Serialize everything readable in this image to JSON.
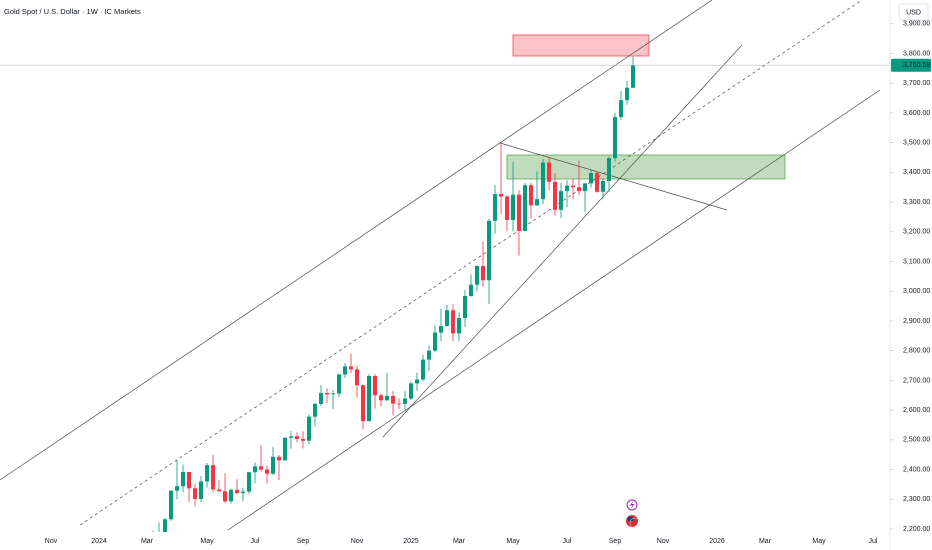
{
  "chart_data": {
    "type": "candlestick",
    "title": "Gold Spot / U.S. Dollar · 1W · IC Markets",
    "currency": "USD",
    "up_color": "#089981",
    "down_color": "#f23645",
    "ylim": [
      2190,
      3980
    ],
    "yticks": [
      {
        "value": 2200,
        "label": "2,200.00"
      },
      {
        "value": 2300,
        "label": "2,300.00"
      },
      {
        "value": 2400,
        "label": "2,400.00"
      },
      {
        "value": 2500,
        "label": "2,500.00"
      },
      {
        "value": 2600,
        "label": "2,600.00"
      },
      {
        "value": 2700,
        "label": "2,700.00"
      },
      {
        "value": 2800,
        "label": "2,800.00"
      },
      {
        "value": 2900,
        "label": "2,900.00"
      },
      {
        "value": 3000,
        "label": "3,000.00"
      },
      {
        "value": 3100,
        "label": "3,100.00"
      },
      {
        "value": 3200,
        "label": "3,200.00"
      },
      {
        "value": 3300,
        "label": "3,300.00"
      },
      {
        "value": 3400,
        "label": "3,400.00"
      },
      {
        "value": 3500,
        "label": "3,500.00"
      },
      {
        "value": 3600,
        "label": "3,600.00"
      },
      {
        "value": 3700,
        "label": "3,700.00"
      },
      {
        "value": 3800,
        "label": "3,800.00"
      },
      {
        "value": 3900,
        "label": "3,900.00"
      }
    ],
    "last_price": {
      "value": 3760.58,
      "label": "3,760.58"
    },
    "categories": [
      null,
      null,
      null,
      null,
      null,
      null,
      null,
      null,
      "Nov",
      null,
      null,
      null,
      null,
      null,
      null,
      null,
      "2024",
      null,
      null,
      null,
      null,
      null,
      null,
      null,
      "Mar",
      null,
      null,
      null,
      null,
      null,
      null,
      null,
      null,
      null,
      "May",
      null,
      null,
      null,
      null,
      null,
      null,
      null,
      "Jul",
      null,
      null,
      null,
      null,
      null,
      null,
      null,
      "Sep",
      null,
      null,
      null,
      null,
      null,
      null,
      null,
      null,
      "Nov",
      null,
      null,
      null,
      null,
      null,
      null,
      null,
      null,
      "2025",
      null,
      null,
      null,
      null,
      null,
      null,
      null,
      "Mar",
      null,
      null,
      null,
      null,
      null,
      null,
      null,
      null,
      "May",
      null,
      null,
      null,
      null,
      null,
      null,
      null,
      null,
      "Jul",
      null,
      null,
      null,
      null,
      null,
      null,
      null,
      "Sep",
      null,
      null,
      null,
      null,
      null,
      null,
      null,
      "Nov",
      null,
      null,
      null,
      null,
      null,
      null,
      null,
      null,
      "2026",
      null,
      null,
      null,
      null,
      null,
      null,
      null,
      "Mar",
      null,
      null,
      null,
      null,
      null,
      null,
      null,
      null,
      "May",
      null,
      null,
      null,
      null,
      null,
      null,
      null,
      null,
      "Jul",
      null,
      null
    ],
    "open": [
      null,
      null,
      null,
      null,
      null,
      null,
      null,
      null,
      null,
      null,
      null,
      null,
      null,
      null,
      null,
      null,
      null,
      null,
      null,
      null,
      null,
      null,
      null,
      null,
      null,
      2179,
      2155,
      2165,
      2233,
      2329,
      2344,
      2392,
      2337,
      2301,
      2360,
      2415,
      2333,
      2327,
      2293,
      2332,
      2321,
      2326,
      2391,
      2411,
      2400,
      2386,
      2443,
      2431,
      2507,
      2512,
      2503,
      2497,
      2578,
      2621,
      2658,
      2653,
      2656,
      2720,
      2747,
      2737,
      2684,
      2563,
      2715,
      2650,
      2633,
      2648,
      2622,
      2621,
      2639,
      2690,
      2703,
      2770,
      2800,
      2861,
      2883,
      2936,
      2858,
      2910,
      2984,
      3022,
      3085,
      3037,
      3237,
      3327,
      3319,
      3240,
      3325,
      3203,
      3357,
      3289,
      3310,
      3433,
      3368,
      3274,
      3337,
      3355,
      3350,
      3337,
      3363,
      3398,
      3335,
      3371,
      3448,
      3586,
      3643,
      3685,
      null,
      null,
      null,
      null,
      null,
      null,
      null,
      null,
      null,
      null,
      null,
      null,
      null,
      null,
      null,
      null,
      null,
      null,
      null,
      null,
      null,
      null,
      null,
      null,
      null,
      null,
      null,
      null,
      null,
      null,
      null,
      null,
      null,
      null,
      null,
      null,
      null,
      null,
      null,
      null,
      null,
      null
    ],
    "high": [
      null,
      null,
      null,
      null,
      null,
      null,
      null,
      null,
      null,
      null,
      null,
      null,
      null,
      null,
      null,
      null,
      null,
      null,
      null,
      null,
      null,
      null,
      null,
      null,
      null,
      2195,
      2223,
      2236,
      2330,
      2431,
      2417,
      2392,
      2352,
      2378,
      2422,
      2450,
      2364,
      2388,
      2336,
      2368,
      2339,
      2392,
      2424,
      2483,
      2413,
      2477,
      2449,
      2509,
      2531,
      2525,
      2529,
      2586,
      2625,
      2685,
      2673,
      2667,
      2722,
      2758,
      2790,
      2750,
      2686,
      2721,
      2721,
      2657,
      2726,
      2664,
      2639,
      2665,
      2697,
      2726,
      2786,
      2817,
      2886,
      2942,
      2954,
      2956,
      2930,
      3004,
      3057,
      3087,
      3167,
      3245,
      3357,
      3500,
      3323,
      3435,
      3340,
      3365,
      3365,
      3403,
      3446,
      3452,
      3398,
      3365,
      3374,
      3377,
      3439,
      3363,
      3409,
      3404,
      3378,
      3453,
      3599,
      3674,
      3707,
      3791,
      null,
      null,
      null,
      null,
      null,
      null,
      null,
      null,
      null,
      null,
      null,
      null,
      null,
      null,
      null,
      null,
      null,
      null,
      null,
      null,
      null,
      null,
      null,
      null,
      null,
      null,
      null,
      null,
      null,
      null,
      null,
      null,
      null,
      null,
      null,
      null,
      null,
      null,
      null,
      null,
      null,
      null
    ],
    "low": [
      null,
      null,
      null,
      null,
      null,
      null,
      null,
      null,
      null,
      null,
      null,
      null,
      null,
      null,
      null,
      null,
      null,
      null,
      null,
      null,
      null,
      null,
      null,
      null,
      null,
      2146,
      2146,
      2158,
      2228,
      2300,
      2324,
      2291,
      2277,
      2291,
      2340,
      2325,
      2326,
      2287,
      2286,
      2316,
      2293,
      2318,
      2353,
      2393,
      2353,
      2382,
      2364,
      2430,
      2470,
      2491,
      2471,
      2485,
      2546,
      2614,
      2624,
      2603,
      2645,
      2708,
      2725,
      2643,
      2536,
      2563,
      2605,
      2613,
      2632,
      2583,
      2603,
      2596,
      2634,
      2665,
      2699,
      2731,
      2795,
      2832,
      2881,
      2832,
      2832,
      2880,
      2982,
      3000,
      3015,
      2957,
      3194,
      3260,
      3202,
      3202,
      3120,
      3204,
      3245,
      3287,
      3293,
      3340,
      3255,
      3247,
      3283,
      3309,
      3324,
      3268,
      3348,
      3331,
      3311,
      3335,
      3436,
      3576,
      3628,
      3683,
      null,
      null,
      null,
      null,
      null,
      null,
      null,
      null,
      null,
      null,
      null,
      null,
      null,
      null,
      null,
      null,
      null,
      null,
      null,
      null,
      null,
      null,
      null,
      null,
      null,
      null,
      null,
      null,
      null,
      null,
      null,
      null,
      null,
      null,
      null,
      null,
      null,
      null,
      null,
      null,
      null,
      null
    ],
    "close": [
      null,
      null,
      null,
      null,
      null,
      null,
      null,
      null,
      null,
      null,
      null,
      null,
      null,
      null,
      null,
      null,
      null,
      null,
      null,
      null,
      null,
      null,
      null,
      null,
      null,
      2155,
      2165,
      2233,
      2329,
      2344,
      2392,
      2337,
      2301,
      2360,
      2415,
      2333,
      2327,
      2293,
      2332,
      2321,
      2326,
      2391,
      2411,
      2400,
      2386,
      2443,
      2431,
      2507,
      2512,
      2503,
      2497,
      2578,
      2621,
      2658,
      2653,
      2656,
      2720,
      2747,
      2737,
      2684,
      2563,
      2715,
      2650,
      2633,
      2648,
      2622,
      2621,
      2639,
      2690,
      2703,
      2770,
      2800,
      2861,
      2883,
      2936,
      2858,
      2910,
      2984,
      3022,
      3085,
      3037,
      3237,
      3327,
      3319,
      3240,
      3325,
      3203,
      3357,
      3289,
      3310,
      3433,
      3368,
      3274,
      3337,
      3355,
      3350,
      3337,
      3363,
      3398,
      3335,
      3371,
      3448,
      3586,
      3643,
      3685,
      3760.58,
      null,
      null,
      null,
      null,
      null,
      null,
      null,
      null,
      null,
      null,
      null,
      null,
      null,
      null,
      null,
      null,
      null,
      null,
      null,
      null,
      null,
      null,
      null,
      null,
      null,
      null,
      null,
      null,
      null,
      null,
      null,
      null,
      null,
      null,
      null,
      null,
      null,
      null,
      null,
      null,
      null,
      null
    ]
  }
}
